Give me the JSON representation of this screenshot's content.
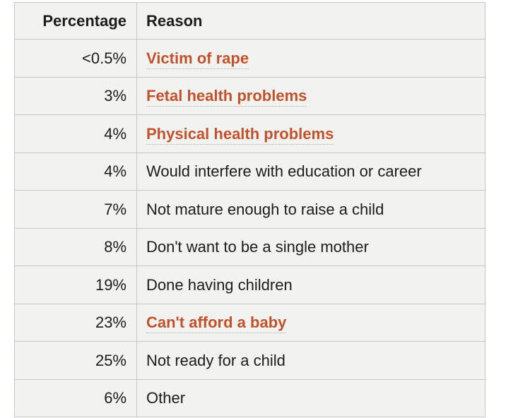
{
  "page": {
    "background": "#ffffff"
  },
  "table": {
    "colors": {
      "cell_background": "#f2f2f0",
      "border": "#c6c6c6",
      "text": "#1c1c1e",
      "link": "#c1522b",
      "link_underline": "#b3afab"
    },
    "headers": {
      "percentage": "Percentage",
      "reason": "Reason"
    },
    "rows": [
      {
        "percentage": "<0.5%",
        "reason": "Victim of rape",
        "is_link": true
      },
      {
        "percentage": "3%",
        "reason": "Fetal health problems",
        "is_link": true
      },
      {
        "percentage": "4%",
        "reason": "Physical health problems",
        "is_link": true
      },
      {
        "percentage": "4%",
        "reason": "Would interfere with education or career",
        "is_link": false
      },
      {
        "percentage": "7%",
        "reason": "Not mature enough to raise a child",
        "is_link": false
      },
      {
        "percentage": "8%",
        "reason": "Don't want to be a single mother",
        "is_link": false
      },
      {
        "percentage": "19%",
        "reason": "Done having children",
        "is_link": false
      },
      {
        "percentage": "23%",
        "reason": "Can't afford a baby",
        "is_link": true
      },
      {
        "percentage": "25%",
        "reason": "Not ready for a child",
        "is_link": false
      },
      {
        "percentage": "6%",
        "reason": "Other",
        "is_link": false
      }
    ]
  }
}
